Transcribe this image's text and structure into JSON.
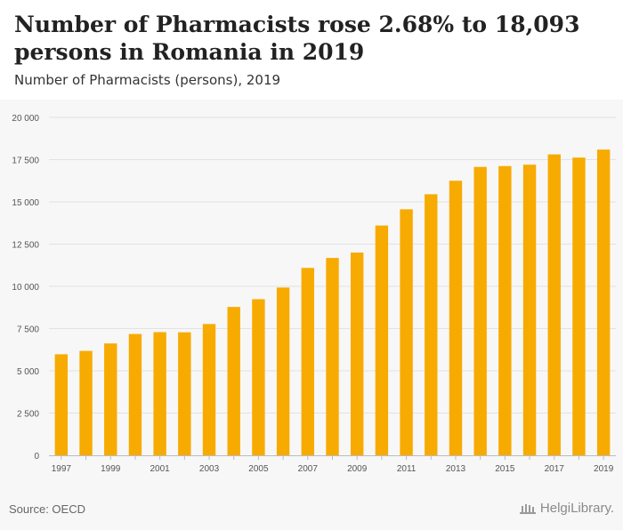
{
  "header": {
    "title": "Number of Pharmacists rose 2.68% to 18,093 persons in Romania in 2019",
    "subtitle": "Number of Pharmacists (persons), 2019"
  },
  "footer": {
    "source": "Source: OECD",
    "brand": "HelgiLibrary."
  },
  "colors": {
    "bar": "#f7ab00",
    "background": "#f7f7f7",
    "grid": "#e2e2e2"
  },
  "chart_data": {
    "type": "bar",
    "title": "Number of Pharmacists rose 2.68% to 18,093 persons in Romania in 2019",
    "subtitle": "Number of Pharmacists (persons), 2019",
    "xlabel": "",
    "ylabel": "",
    "categories": [
      "1997",
      "1998",
      "1999",
      "2000",
      "2001",
      "2002",
      "2003",
      "2004",
      "2005",
      "2006",
      "2007",
      "2008",
      "2009",
      "2010",
      "2011",
      "2012",
      "2013",
      "2014",
      "2015",
      "2016",
      "2017",
      "2018",
      "2019"
    ],
    "values": [
      5980,
      6180,
      6620,
      7180,
      7290,
      7280,
      7770,
      8780,
      9240,
      9930,
      11090,
      11680,
      12000,
      13600,
      14560,
      15450,
      16250,
      17070,
      17120,
      17200,
      17810,
      17620,
      18093
    ],
    "x_tick_labels": [
      "1997",
      "1999",
      "2001",
      "2003",
      "2005",
      "2007",
      "2009",
      "2011",
      "2013",
      "2015",
      "2017",
      "2019"
    ],
    "y_tick_labels": [
      "0",
      "2 500",
      "5 000",
      "7 500",
      "10 000",
      "12 500",
      "15 000",
      "17 500",
      "20 000"
    ],
    "ylim": [
      0,
      20000
    ],
    "grid": true
  }
}
